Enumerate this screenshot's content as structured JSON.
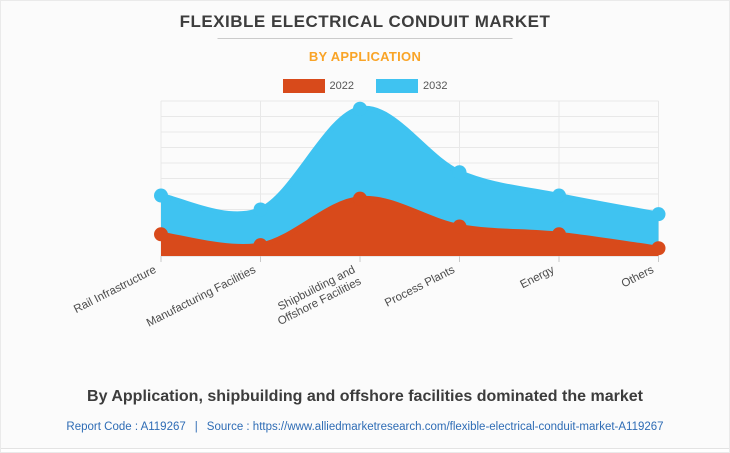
{
  "chart_data": {
    "type": "area",
    "title": "FLEXIBLE ELECTRICAL CONDUIT MARKET",
    "subtitle": "BY APPLICATION",
    "categories": [
      "Rail Infrastructure",
      "Manufacturing Facilities",
      "Shipbuilding and Offshore Facilities",
      "Process Plants",
      "Energy",
      "Others"
    ],
    "category_label_lines": [
      [
        "Rail Infrastructure"
      ],
      [
        "Manufacturing Facilities"
      ],
      [
        "Shipbuilding and",
        "Offshore Facilities"
      ],
      [
        "Process Plants"
      ],
      [
        "Energy"
      ],
      [
        "Others"
      ]
    ],
    "series": [
      {
        "name": "2032",
        "color": "#3FC3F1",
        "values": [
          3.9,
          3.0,
          9.5,
          5.4,
          3.9,
          2.7
        ]
      },
      {
        "name": "2022",
        "color": "#D84A1B",
        "values": [
          1.4,
          0.7,
          3.7,
          1.9,
          1.4,
          0.5
        ]
      }
    ],
    "xlabel": "",
    "ylabel": "",
    "ylim": [
      0,
      10
    ],
    "y_axis_visible": false,
    "grid": true,
    "legend_position": "top",
    "marker_radius": 7
  },
  "legend": [
    {
      "label": "2022",
      "color": "#D84A1B"
    },
    {
      "label": "2032",
      "color": "#3FC3F1"
    }
  ],
  "caption": "By Application, shipbuilding and offshore facilities dominated the market",
  "footer": {
    "report_code": "Report Code : A119267",
    "separator": "|",
    "source": "Source : https://www.alliedmarketresearch.com/flexible-electrical-conduit-market-A119267"
  },
  "colors": {
    "series_2022": "#D84A1B",
    "series_2032": "#3FC3F1",
    "subtitle": "#F9A427",
    "title_text": "#3D3D3D",
    "footer_link": "#2E6CB5",
    "grid": "#E8E8E8",
    "axis_line": "#D4D4D4",
    "tick": "#C9C9C9",
    "label_text": "#4C4C4C",
    "background": "#FBFBFB"
  }
}
